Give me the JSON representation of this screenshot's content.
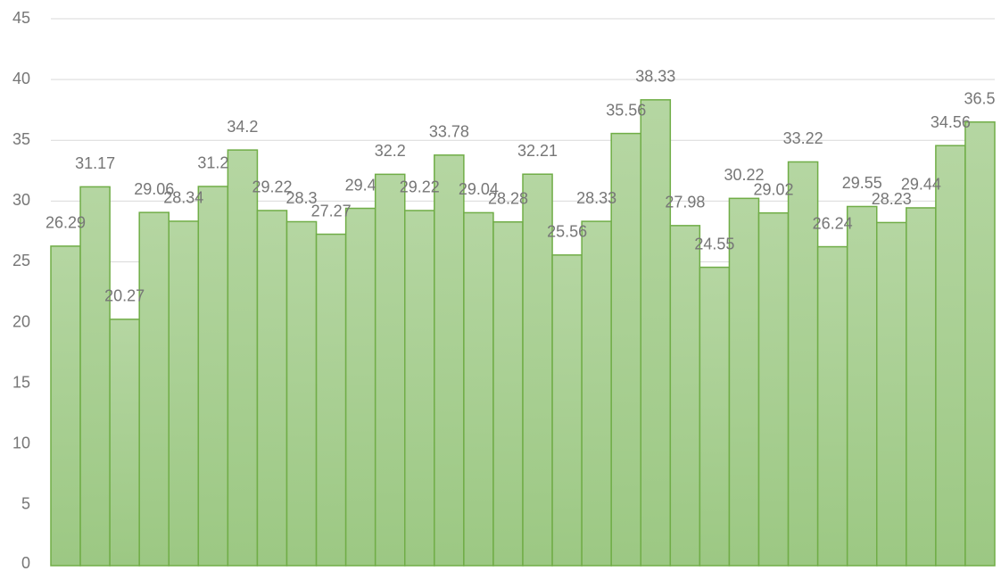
{
  "chart_data": {
    "type": "bar",
    "values": [
      26.29,
      31.17,
      20.27,
      29.06,
      28.34,
      31.2,
      34.2,
      29.22,
      28.3,
      27.27,
      29.4,
      32.2,
      29.22,
      33.78,
      29.04,
      28.28,
      32.21,
      25.56,
      28.33,
      35.56,
      38.33,
      27.98,
      24.55,
      30.22,
      29.02,
      33.22,
      26.24,
      29.55,
      28.23,
      29.44,
      34.56,
      36.5
    ],
    "color": "#70ad47",
    "ylim": [
      0,
      45
    ],
    "yticks": [
      0,
      5,
      10,
      15,
      20,
      25,
      30,
      35,
      40,
      45
    ],
    "grid": true
  }
}
